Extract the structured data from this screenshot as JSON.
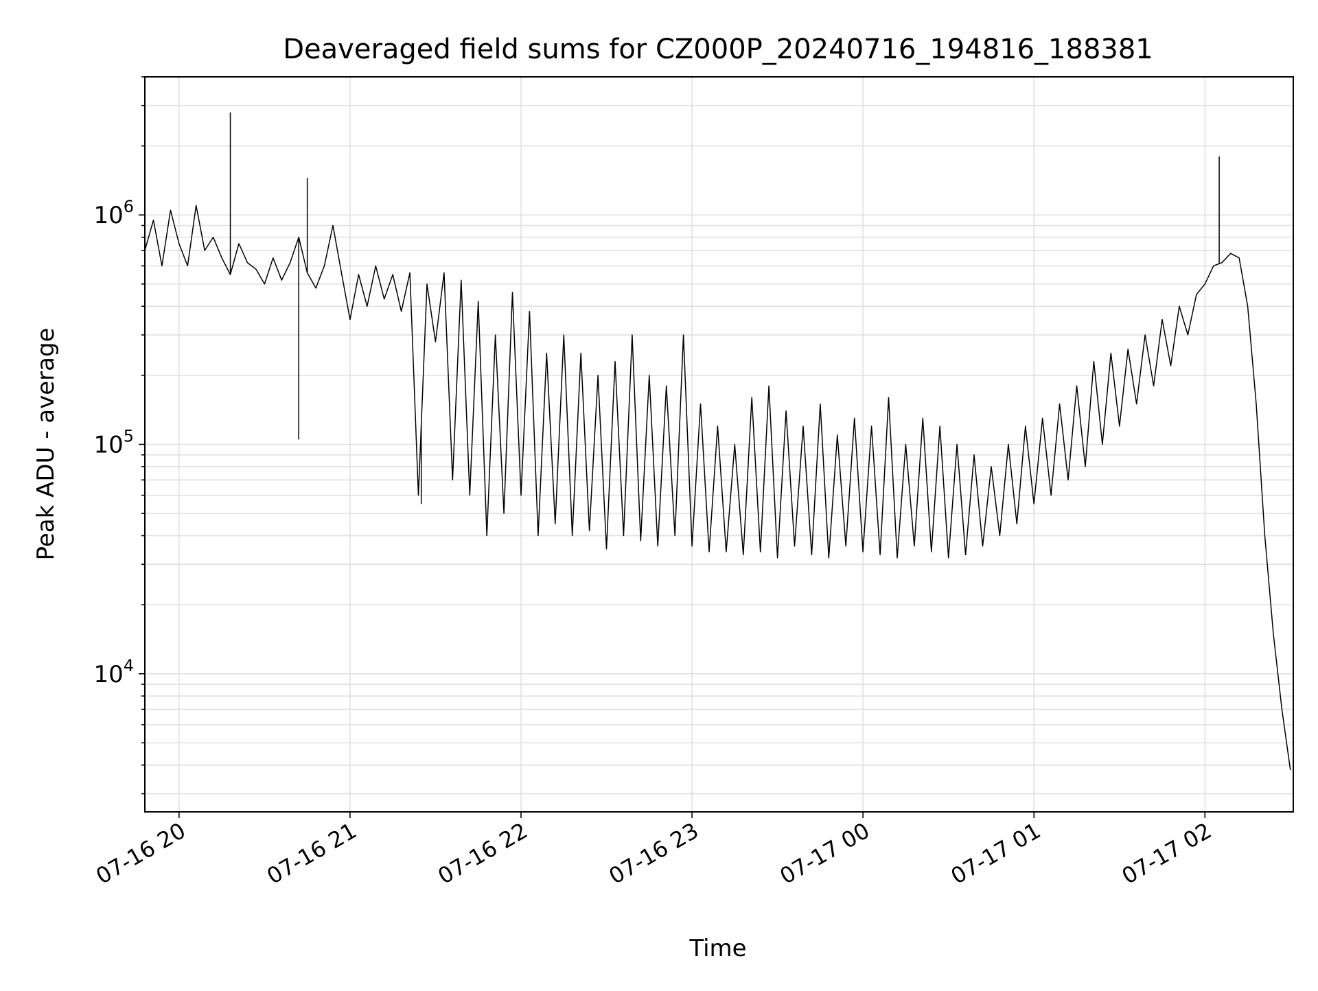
{
  "chart_data": {
    "type": "line",
    "title": "Deaveraged field sums for CZ000P_20240716_194816_188381",
    "xlabel": "Time",
    "ylabel": "Peak ADU - average",
    "y_scale": "log",
    "ylim": [
      2500,
      4000000
    ],
    "xlim": [
      "2024-07-16 19:48",
      "2024-07-17 02:31"
    ],
    "x_ticks": [
      {
        "value": "2024-07-16 20:00",
        "label": "07-16 20"
      },
      {
        "value": "2024-07-16 21:00",
        "label": "07-16 21"
      },
      {
        "value": "2024-07-16 22:00",
        "label": "07-16 22"
      },
      {
        "value": "2024-07-16 23:00",
        "label": "07-16 23"
      },
      {
        "value": "2024-07-17 00:00",
        "label": "07-17 00"
      },
      {
        "value": "2024-07-17 01:00",
        "label": "07-17 01"
      },
      {
        "value": "2024-07-17 02:00",
        "label": "07-17 02"
      }
    ],
    "y_ticks": [
      {
        "value": 10000,
        "base": "10",
        "exp": "4"
      },
      {
        "value": 100000,
        "base": "10",
        "exp": "5"
      },
      {
        "value": 1000000,
        "base": "10",
        "exp": "6"
      }
    ],
    "grid": true,
    "line_color": "#000000",
    "series": [
      {
        "x": [
          "2024-07-16 19:48",
          "2024-07-16 19:51",
          "2024-07-16 19:54",
          "2024-07-16 19:57",
          "2024-07-16 20:00",
          "2024-07-16 20:03",
          "2024-07-16 20:06",
          "2024-07-16 20:09",
          "2024-07-16 20:12",
          "2024-07-16 20:15",
          "2024-07-16 20:18",
          "2024-07-16 20:21",
          "2024-07-16 20:24",
          "2024-07-16 20:27",
          "2024-07-16 20:30",
          "2024-07-16 20:33",
          "2024-07-16 20:36",
          "2024-07-16 20:39",
          "2024-07-16 20:42",
          "2024-07-16 20:45",
          "2024-07-16 20:48",
          "2024-07-16 20:51",
          "2024-07-16 20:54",
          "2024-07-16 20:57",
          "2024-07-16 21:00",
          "2024-07-16 21:03",
          "2024-07-16 21:06",
          "2024-07-16 21:09",
          "2024-07-16 21:12",
          "2024-07-16 21:15",
          "2024-07-16 21:18",
          "2024-07-16 21:21",
          "2024-07-16 21:24",
          "2024-07-16 21:27",
          "2024-07-16 21:30",
          "2024-07-16 21:33",
          "2024-07-16 21:36",
          "2024-07-16 21:39",
          "2024-07-16 21:42",
          "2024-07-16 21:45",
          "2024-07-16 21:48",
          "2024-07-16 21:51",
          "2024-07-16 21:54",
          "2024-07-16 21:57",
          "2024-07-16 22:00",
          "2024-07-16 22:03",
          "2024-07-16 22:06",
          "2024-07-16 22:09",
          "2024-07-16 22:12",
          "2024-07-16 22:15",
          "2024-07-16 22:18",
          "2024-07-16 22:21",
          "2024-07-16 22:24",
          "2024-07-16 22:27",
          "2024-07-16 22:30",
          "2024-07-16 22:33",
          "2024-07-16 22:36",
          "2024-07-16 22:39",
          "2024-07-16 22:42",
          "2024-07-16 22:45",
          "2024-07-16 22:48",
          "2024-07-16 22:51",
          "2024-07-16 22:54",
          "2024-07-16 22:57",
          "2024-07-16 23:00",
          "2024-07-16 23:03",
          "2024-07-16 23:06",
          "2024-07-16 23:09",
          "2024-07-16 23:12",
          "2024-07-16 23:15",
          "2024-07-16 23:18",
          "2024-07-16 23:21",
          "2024-07-16 23:24",
          "2024-07-16 23:27",
          "2024-07-16 23:30",
          "2024-07-16 23:33",
          "2024-07-16 23:36",
          "2024-07-16 23:39",
          "2024-07-16 23:42",
          "2024-07-16 23:45",
          "2024-07-16 23:48",
          "2024-07-16 23:51",
          "2024-07-16 23:54",
          "2024-07-16 23:57",
          "2024-07-17 00:00",
          "2024-07-17 00:03",
          "2024-07-17 00:06",
          "2024-07-17 00:09",
          "2024-07-17 00:12",
          "2024-07-17 00:15",
          "2024-07-17 00:18",
          "2024-07-17 00:21",
          "2024-07-17 00:24",
          "2024-07-17 00:27",
          "2024-07-17 00:30",
          "2024-07-17 00:33",
          "2024-07-17 00:36",
          "2024-07-17 00:39",
          "2024-07-17 00:42",
          "2024-07-17 00:45",
          "2024-07-17 00:48",
          "2024-07-17 00:51",
          "2024-07-17 00:54",
          "2024-07-17 00:57",
          "2024-07-17 01:00",
          "2024-07-17 01:03",
          "2024-07-17 01:06",
          "2024-07-17 01:09",
          "2024-07-17 01:12",
          "2024-07-17 01:15",
          "2024-07-17 01:18",
          "2024-07-17 01:21",
          "2024-07-17 01:24",
          "2024-07-17 01:27",
          "2024-07-17 01:30",
          "2024-07-17 01:33",
          "2024-07-17 01:36",
          "2024-07-17 01:39",
          "2024-07-17 01:42",
          "2024-07-17 01:45",
          "2024-07-17 01:48",
          "2024-07-17 01:51",
          "2024-07-17 01:54",
          "2024-07-17 01:57",
          "2024-07-17 02:00",
          "2024-07-17 02:03",
          "2024-07-17 02:06",
          "2024-07-17 02:09",
          "2024-07-17 02:12",
          "2024-07-17 02:15",
          "2024-07-17 02:18",
          "2024-07-17 02:21",
          "2024-07-17 02:24",
          "2024-07-17 02:27",
          "2024-07-17 02:30"
        ],
        "y": [
          700000,
          950000,
          600000,
          1050000,
          750000,
          600000,
          1100000,
          700000,
          800000,
          650000,
          550000,
          750000,
          620000,
          580000,
          500000,
          650000,
          520000,
          620000,
          800000,
          560000,
          480000,
          600000,
          900000,
          560000,
          350000,
          550000,
          400000,
          600000,
          430000,
          550000,
          380000,
          560000,
          60000,
          500000,
          280000,
          560000,
          70000,
          520000,
          60000,
          420000,
          40000,
          300000,
          50000,
          460000,
          60000,
          380000,
          40000,
          250000,
          45000,
          300000,
          40000,
          250000,
          42000,
          200000,
          35000,
          230000,
          40000,
          300000,
          38000,
          200000,
          36000,
          180000,
          40000,
          300000,
          36000,
          150000,
          34000,
          120000,
          34000,
          100000,
          33000,
          160000,
          34000,
          180000,
          32000,
          140000,
          36000,
          120000,
          33000,
          150000,
          32000,
          110000,
          36000,
          130000,
          34000,
          120000,
          33000,
          160000,
          32000,
          100000,
          36000,
          130000,
          34000,
          120000,
          32000,
          100000,
          33000,
          90000,
          36000,
          80000,
          40000,
          100000,
          45000,
          120000,
          55000,
          130000,
          60000,
          150000,
          70000,
          180000,
          80000,
          230000,
          100000,
          250000,
          120000,
          260000,
          150000,
          300000,
          180000,
          350000,
          220000,
          400000,
          300000,
          450000,
          500000,
          600000,
          620000,
          680000,
          650000,
          400000,
          150000,
          40000,
          15000,
          7000,
          3800
        ]
      }
    ],
    "spikes": [
      {
        "x": "2024-07-16 20:18",
        "y": 2800000
      },
      {
        "x": "2024-07-16 20:45",
        "y": 1450000
      },
      {
        "x": "2024-07-17 02:05",
        "y": 1800000
      }
    ],
    "dips": [
      {
        "x": "2024-07-16 20:42",
        "y": 105000
      },
      {
        "x": "2024-07-16 21:25",
        "y": 55000
      }
    ]
  }
}
